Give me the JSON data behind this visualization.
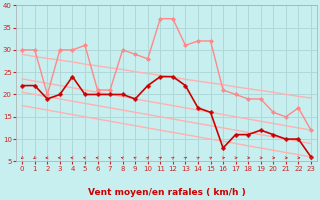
{
  "xlabel": "Vent moyen/en rafales ( km/h )",
  "xlim": [
    -0.5,
    23.5
  ],
  "ylim": [
    5,
    40
  ],
  "yticks": [
    5,
    10,
    15,
    20,
    25,
    30,
    35,
    40
  ],
  "xticks": [
    0,
    1,
    2,
    3,
    4,
    5,
    6,
    7,
    8,
    9,
    10,
    11,
    12,
    13,
    14,
    15,
    16,
    17,
    18,
    19,
    20,
    21,
    22,
    23
  ],
  "background_color": "#c8efef",
  "grid_color": "#b0d8d8",
  "series": [
    {
      "x": [
        0,
        1,
        2,
        3,
        4,
        5,
        6,
        7,
        8,
        9,
        10,
        11,
        12,
        13,
        14,
        15,
        16,
        17,
        18,
        19,
        20,
        21,
        22,
        23
      ],
      "y": [
        29.0,
        28.5,
        28.1,
        27.7,
        27.3,
        26.8,
        26.4,
        26.0,
        25.6,
        25.1,
        24.7,
        24.3,
        23.9,
        23.4,
        23.0,
        22.6,
        22.2,
        21.7,
        21.3,
        20.9,
        20.5,
        20.0,
        19.6,
        19.2
      ],
      "color": "#ffb0b0",
      "linewidth": 1.0,
      "marker": null
    },
    {
      "x": [
        0,
        1,
        2,
        3,
        4,
        5,
        6,
        7,
        8,
        9,
        10,
        11,
        12,
        13,
        14,
        15,
        16,
        17,
        18,
        19,
        20,
        21,
        22,
        23
      ],
      "y": [
        23.5,
        23.0,
        22.5,
        22.0,
        21.5,
        21.0,
        20.5,
        20.0,
        19.5,
        19.0,
        18.5,
        18.0,
        17.5,
        17.0,
        16.5,
        16.0,
        15.5,
        15.0,
        14.5,
        14.0,
        13.5,
        13.0,
        12.5,
        12.0
      ],
      "color": "#ffb0b0",
      "linewidth": 1.0,
      "marker": null
    },
    {
      "x": [
        0,
        1,
        2,
        3,
        4,
        5,
        6,
        7,
        8,
        9,
        10,
        11,
        12,
        13,
        14,
        15,
        16,
        17,
        18,
        19,
        20,
        21,
        22,
        23
      ],
      "y": [
        20.5,
        20.0,
        19.5,
        19.0,
        18.5,
        18.0,
        17.5,
        17.0,
        16.5,
        16.0,
        15.5,
        15.0,
        14.5,
        14.0,
        13.5,
        13.0,
        12.5,
        12.0,
        11.5,
        11.0,
        10.5,
        10.0,
        9.5,
        9.0
      ],
      "color": "#ffb0b0",
      "linewidth": 1.0,
      "marker": null
    },
    {
      "x": [
        0,
        1,
        2,
        3,
        4,
        5,
        6,
        7,
        8,
        9,
        10,
        11,
        12,
        13,
        14,
        15,
        16,
        17,
        18,
        19,
        20,
        21,
        22,
        23
      ],
      "y": [
        17.5,
        17.0,
        16.5,
        16.0,
        15.5,
        15.0,
        14.5,
        14.0,
        13.5,
        13.0,
        12.5,
        12.0,
        11.5,
        11.0,
        10.5,
        10.0,
        9.5,
        9.0,
        8.5,
        8.0,
        7.5,
        7.0,
        6.5,
        6.0
      ],
      "color": "#ffb0b0",
      "linewidth": 1.0,
      "marker": null
    },
    {
      "x": [
        0,
        1,
        2,
        3,
        4,
        5,
        6,
        7,
        8,
        9,
        10,
        11,
        12,
        13,
        14,
        15,
        16,
        17,
        18,
        19,
        20,
        21,
        22,
        23
      ],
      "y": [
        30,
        30,
        20,
        30,
        30,
        31,
        21,
        21,
        30,
        29,
        28,
        37,
        37,
        31,
        32,
        32,
        21,
        20,
        19,
        19,
        16,
        15,
        17,
        12
      ],
      "color": "#ff8888",
      "linewidth": 1.0,
      "marker": "D",
      "markersize": 2.0
    },
    {
      "x": [
        0,
        1,
        2,
        3,
        4,
        5,
        6,
        7,
        8,
        9,
        10,
        11,
        12,
        13,
        14,
        15,
        16,
        17,
        18,
        19,
        20,
        21,
        22,
        23
      ],
      "y": [
        22,
        22,
        19,
        20,
        24,
        20,
        20,
        20,
        20,
        19,
        22,
        24,
        24,
        22,
        17,
        16,
        8,
        11,
        11,
        12,
        11,
        10,
        10,
        6
      ],
      "color": "#cc0000",
      "linewidth": 1.2,
      "marker": "P",
      "markersize": 2.5
    }
  ],
  "wind_arrows_angles": [
    220,
    220,
    260,
    275,
    275,
    280,
    285,
    285,
    290,
    300,
    30,
    45,
    50,
    50,
    55,
    60,
    80,
    85,
    90,
    90,
    95,
    95,
    95,
    50
  ],
  "arrow_color": "#cc2222",
  "xlabel_color": "#cc0000",
  "tick_color": "#cc2222",
  "tick_fontsize": 5.0,
  "xlabel_fontsize": 6.5
}
